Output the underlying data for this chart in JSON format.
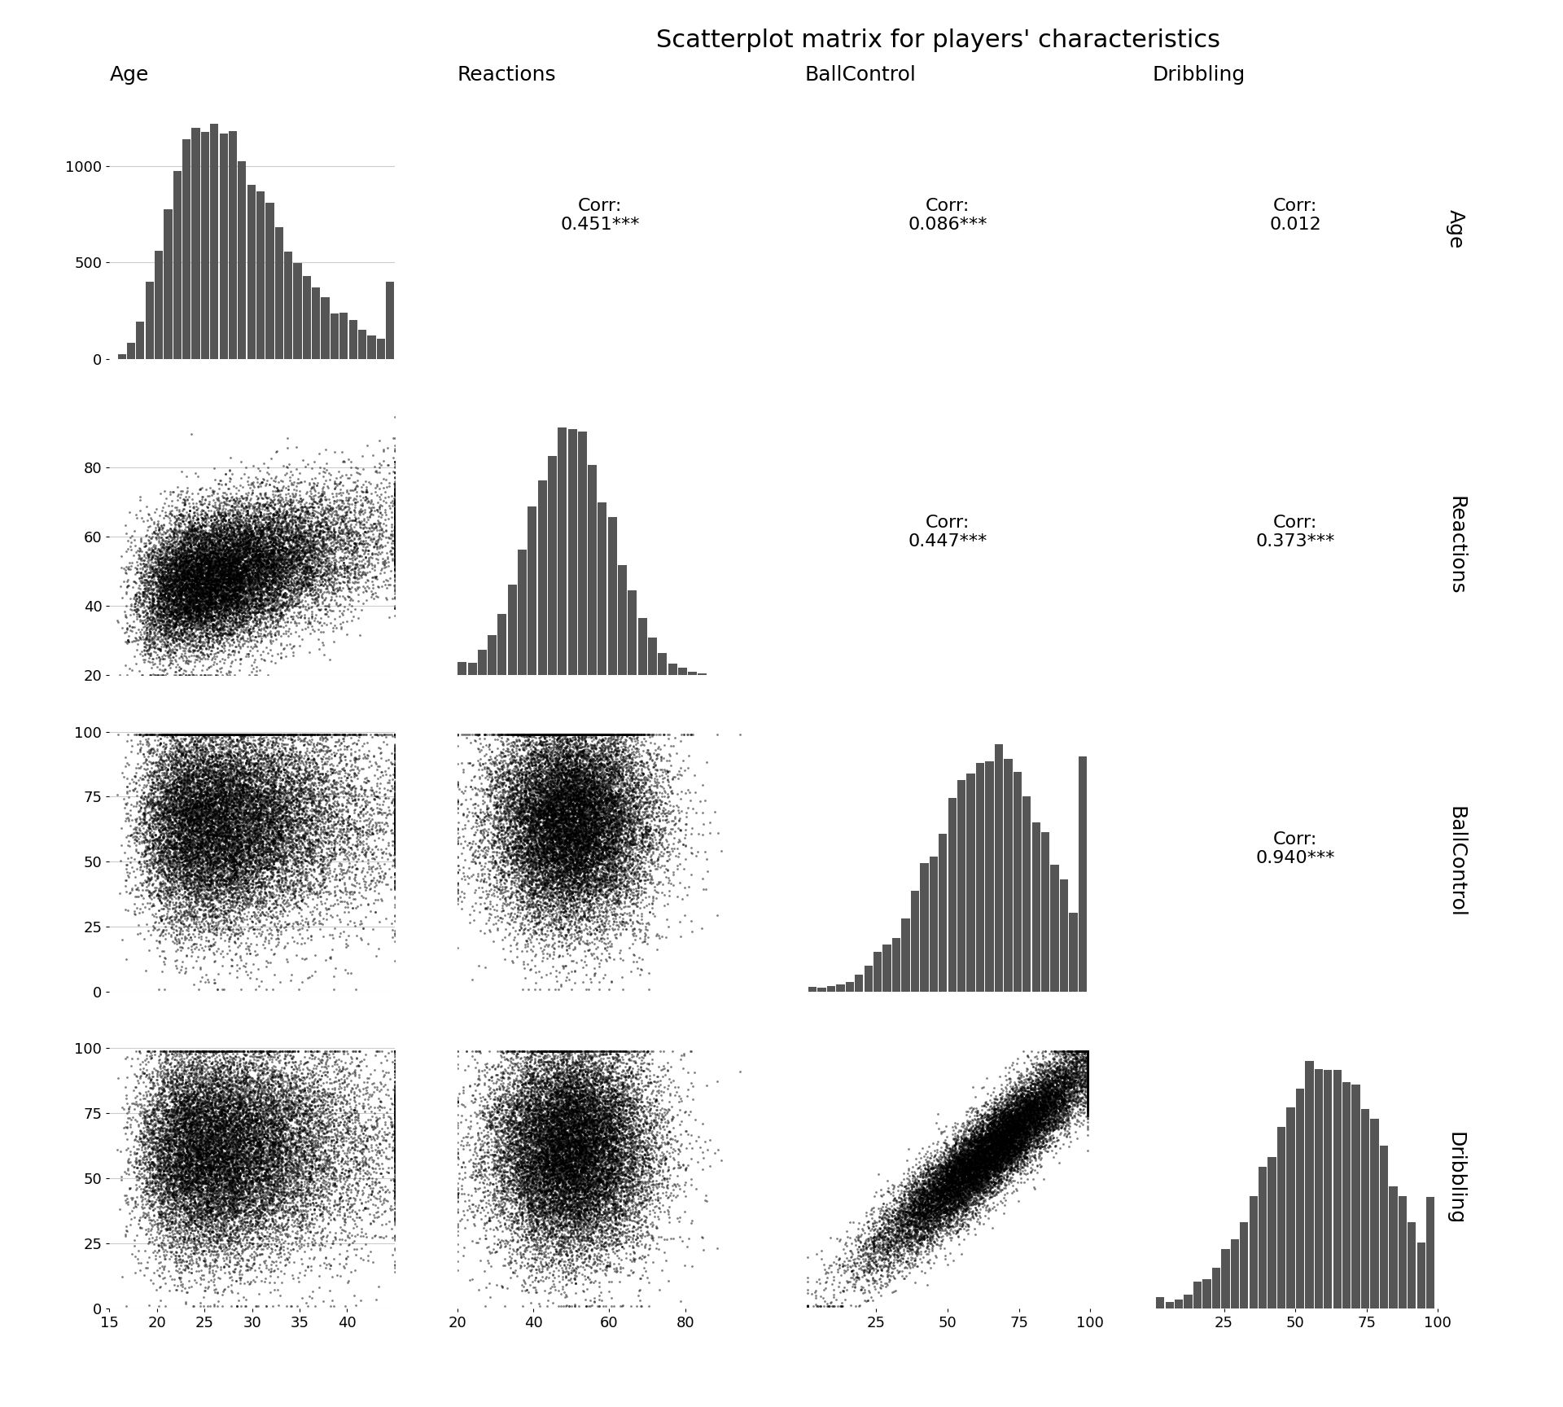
{
  "title": "Scatterplot matrix for players' characteristics",
  "variables": [
    "Age",
    "Reactions",
    "BallControl",
    "Dribbling"
  ],
  "hist_color": "#555555",
  "scatter_color": "#000000",
  "background_color": "#ffffff",
  "grid_color": "#cccccc",
  "correlations": {
    "0_1": {
      "text": "Corr:\n0.451***",
      "corr": 0.451,
      "sig": "***"
    },
    "0_2": {
      "text": "Corr:\n0.086***",
      "corr": 0.086,
      "sig": "***"
    },
    "0_3": {
      "text": "Corr:\n0.012",
      "corr": 0.012,
      "sig": ""
    },
    "1_2": {
      "text": "Corr:\n0.447***",
      "corr": 0.447,
      "sig": "***"
    },
    "1_3": {
      "text": "Corr:\n0.373***",
      "corr": 0.373,
      "sig": "***"
    },
    "2_3": {
      "text": "Corr:\n0.940***",
      "corr": 0.94,
      "sig": "***"
    }
  },
  "age_range": [
    15,
    45
  ],
  "reactions_range": [
    20,
    95
  ],
  "ballcontrol_range": [
    0,
    100
  ],
  "dribbling_range": [
    0,
    100
  ],
  "scatter_size": 4,
  "scatter_alpha": 0.5,
  "n_players": 18000,
  "seed": 42,
  "title_fontsize": 22,
  "label_fontsize": 18,
  "corr_fontsize": 16,
  "tick_fontsize": 13,
  "axis_label_fontsize": 18
}
